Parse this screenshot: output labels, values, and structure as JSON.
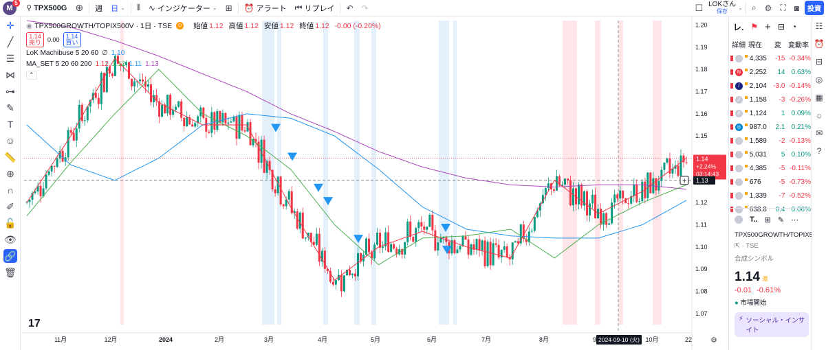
{
  "toolbar": {
    "logo_letter": "M",
    "notification_count": "5",
    "symbol": "TPX500G",
    "interval_week": "週",
    "interval_day": "日",
    "indicators_label": "インジケーター",
    "alert_label": "アラート",
    "replay_label": "リプレイ",
    "user_name": "LOKさん",
    "user_status": "保存",
    "trade_label": "投資"
  },
  "legend": {
    "title": "TPX500GROWTH/TOPIX500V · 1日 · TSE",
    "ohlc": [
      {
        "label": "始値",
        "value": "1.12"
      },
      {
        "label": "高値",
        "value": "1.12"
      },
      {
        "label": "安値",
        "value": "1.12"
      },
      {
        "label": "終値",
        "value": "1.12"
      }
    ],
    "change": "-0.00 (-0.20%)",
    "sell_price": "1.14",
    "sell_label": "売り",
    "spread": "0.00",
    "buy_price": "1.14",
    "buy_label": "買い",
    "ind1_name": "LoK Machibuse 5 20 60",
    "ind1_extra": "∅",
    "ind1_value": "1.10",
    "ind2_name": "MA_SET 5 20 60 200",
    "ind2_values": [
      "1.12",
      "1.12",
      "1.11",
      "1.13"
    ]
  },
  "price_tags": {
    "last": "1.14",
    "last_change": "+2.24%",
    "countdown": "03:14:43",
    "crosshair": "1.13",
    "crosshair_date": "2024-09-10 (火)"
  },
  "colors": {
    "up": "#089981",
    "down": "#f23645",
    "ma5": "#f23645",
    "ma20": "#4caf50",
    "ma60": "#2196f3",
    "ma200": "#ab47bc",
    "signal": "#2196f3"
  },
  "chart_data": {
    "type": "candlestick",
    "y_axis_ticks": [
      "1.20",
      "1.19",
      "1.18",
      "1.17",
      "1.16",
      "1.15",
      "1.14",
      "1.13",
      "1.12",
      "1.11",
      "1.10",
      "1.09",
      "1.08",
      "1.07"
    ],
    "ylim": [
      1.065,
      1.202
    ],
    "x_axis_ticks": [
      "11月",
      "12月",
      "2024",
      "2月",
      "3月",
      "4月",
      "5月",
      "6月",
      "7月",
      "8月",
      "9月",
      "10月",
      "22"
    ],
    "last_price": 1.14,
    "crosshair_price": 1.13,
    "series_names": [
      "MA5",
      "MA20",
      "MA60",
      "MA200"
    ],
    "ma200": [
      1.202,
      1.199,
      1.193,
      1.186,
      1.178,
      1.17,
      1.16,
      1.152,
      1.143,
      1.136,
      1.131,
      1.128,
      1.127,
      1.128,
      1.128,
      1.126
    ],
    "ma60": [
      1.155,
      1.137,
      1.13,
      1.14,
      1.155,
      1.16,
      1.158,
      1.15,
      1.135,
      1.118,
      1.108,
      1.105,
      1.104,
      1.104,
      1.11,
      1.121
    ],
    "ma20": [
      1.114,
      1.138,
      1.16,
      1.18,
      1.16,
      1.15,
      1.135,
      1.11,
      1.092,
      1.104,
      1.105,
      1.108,
      1.095,
      1.11,
      1.12,
      1.128
    ],
    "ma5": [
      1.12,
      1.15,
      1.185,
      1.165,
      1.155,
      1.155,
      1.118,
      1.085,
      1.1,
      1.107,
      1.1,
      1.095,
      1.13,
      1.115,
      1.125,
      1.14
    ],
    "signal_arrows": [
      1.153,
      1.14,
      1.126,
      1.12,
      1.103,
      1.098,
      1.108
    ]
  },
  "watchlist": {
    "title": "レ.",
    "cols": [
      "詳細",
      "現在",
      "変",
      "変動率"
    ],
    "rows": [
      {
        "icon": "",
        "last": "4,335",
        "chg": "-15",
        "pct": "-0.34%",
        "dir": "neg"
      },
      {
        "icon": "N",
        "last": "2,252",
        "chg": "14",
        "pct": "0.63%",
        "dir": "pos"
      },
      {
        "icon": "/",
        "last": "2,104",
        "chg": "-3.0",
        "pct": "-0.14%",
        "dir": "neg"
      },
      {
        "icon": "ノ",
        "last": "1,158",
        "chg": "-3",
        "pct": "-0.26%",
        "dir": "neg"
      },
      {
        "icon": "#",
        "last": "1,124",
        "chg": "1",
        "pct": "0.09%",
        "dir": "pos"
      },
      {
        "icon": "◎",
        "last": "987.0",
        "chg": "2.1",
        "pct": "0.21%",
        "dir": "pos"
      },
      {
        "icon": "",
        "last": "1,589",
        "chg": "-2",
        "pct": "-0.13%",
        "dir": "neg"
      },
      {
        "icon": "",
        "last": "5,031",
        "chg": "5",
        "pct": "0.10%",
        "dir": "pos"
      },
      {
        "icon": "",
        "last": "4,385",
        "chg": "-5",
        "pct": "-0.11%",
        "dir": "neg"
      },
      {
        "icon": "",
        "last": "676",
        "chg": "-5",
        "pct": "-0.73%",
        "dir": "neg"
      },
      {
        "icon": "",
        "last": "1,339",
        "chg": "-7",
        "pct": "-0.52%",
        "dir": "neg"
      },
      {
        "icon": "",
        "last": "638.8",
        "chg": "0.4",
        "pct": "0.06%",
        "dir": "pos"
      }
    ]
  },
  "detail": {
    "symbol_short": "T..",
    "full_name": "TPX500GROWTH/TOPIX500V",
    "exchange": "TSE",
    "type": "合成シンボル",
    "price": "1.14",
    "price_suffix": "還",
    "change": "-0.01",
    "change_pct": "-0.61%",
    "market_status": "市場開始",
    "social_label": "ソーシャル・インサイト"
  }
}
